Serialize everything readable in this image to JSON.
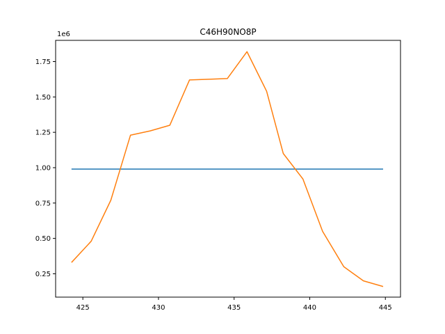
{
  "chart_data": {
    "type": "line",
    "title": "C46H90NO8P",
    "xlabel": "",
    "ylabel": "",
    "y_offset_label": "1e6",
    "xlim": [
      423.2,
      446.0
    ],
    "ylim": [
      0.085,
      1.9
    ],
    "x_ticks": [
      425,
      430,
      435,
      440,
      445
    ],
    "x_tick_labels": [
      "425",
      "430",
      "435",
      "440",
      "445"
    ],
    "y_ticks": [
      0.25,
      0.5,
      0.75,
      1.0,
      1.25,
      1.5,
      1.75
    ],
    "y_tick_labels": [
      "0.25",
      "0.50",
      "0.75",
      "1.00",
      "1.25",
      "1.50",
      "1.75"
    ],
    "grid": false,
    "series": [
      {
        "color": "#1f77b4",
        "x": [
          424.25,
          444.85
        ],
        "y": [
          0.99,
          0.99
        ]
      },
      {
        "color": "#ff7f0e",
        "x": [
          424.25,
          425.55,
          426.85,
          428.15,
          429.45,
          430.75,
          432.05,
          433.35,
          434.55,
          435.85,
          437.15,
          438.25,
          439.55,
          440.85,
          442.25,
          443.55,
          444.85
        ],
        "y": [
          0.33,
          0.48,
          0.77,
          1.23,
          1.26,
          1.3,
          1.62,
          1.625,
          1.63,
          1.82,
          1.54,
          1.1,
          0.92,
          0.55,
          0.3,
          0.2,
          0.16
        ]
      }
    ]
  }
}
